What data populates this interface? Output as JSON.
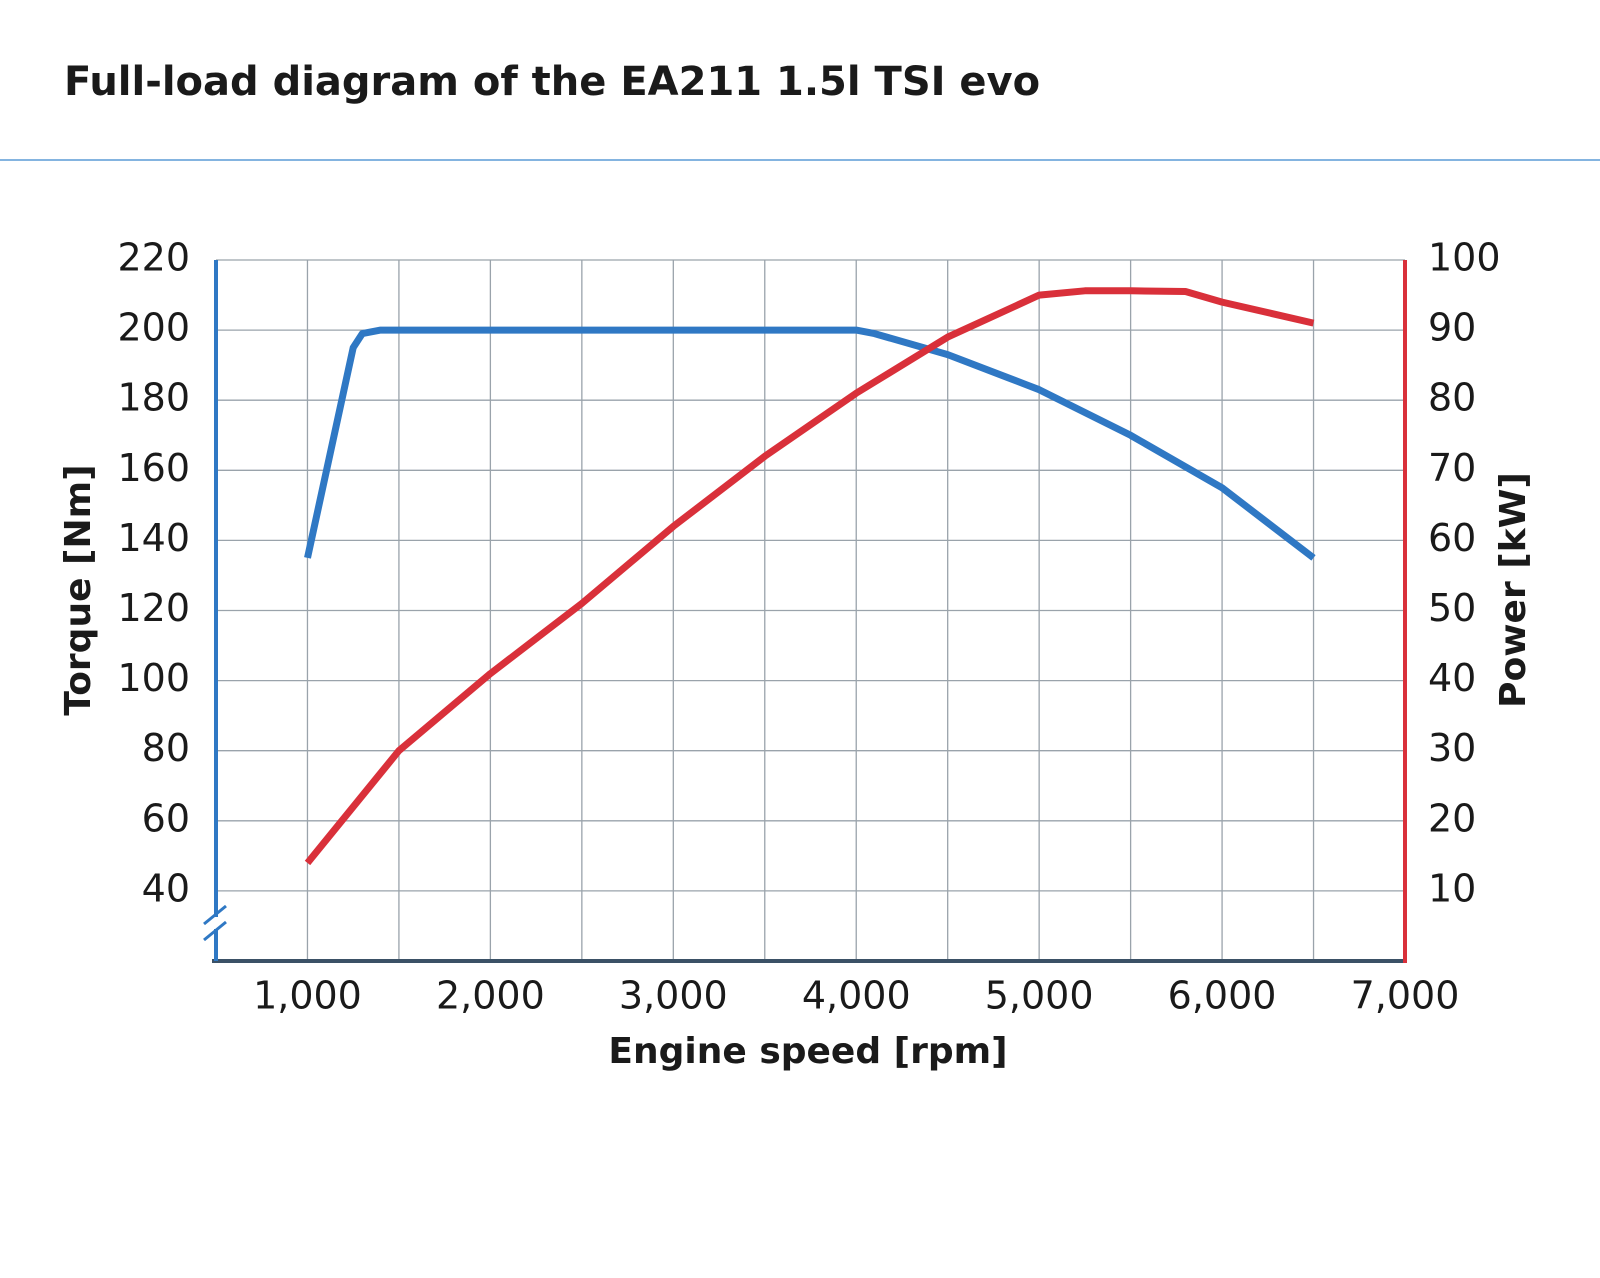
{
  "chart_data": {
    "type": "line",
    "title": "Full-load diagram of the EA211 1.5l TSI evo",
    "x_label": "Engine speed [rpm]",
    "y_label": "Torque [Nm]",
    "y2_label": "Power [kW]",
    "xlim": [
      500,
      7000
    ],
    "xticks": [
      {
        "value": 1000,
        "label": "1,000"
      },
      {
        "value": 2000,
        "label": "2,000"
      },
      {
        "value": 3000,
        "label": "3,000"
      },
      {
        "value": 4000,
        "label": "4,000"
      },
      {
        "value": 5000,
        "label": "5,000"
      },
      {
        "value": 6000,
        "label": "6,000"
      },
      {
        "value": 7000,
        "label": "7,000"
      }
    ],
    "x_minor_ticks": [
      1500,
      2500,
      3500,
      4500,
      5500,
      6500
    ],
    "ylim": [
      20,
      220
    ],
    "yticks": [
      40,
      60,
      80,
      100,
      120,
      140,
      160,
      180,
      200,
      220
    ],
    "y2lim": [
      0,
      100
    ],
    "y2ticks": [
      10,
      20,
      30,
      40,
      50,
      60,
      70,
      80,
      90,
      100
    ],
    "y_axis_color": "#2f78c4",
    "y2_axis_color": "#d9303a",
    "grid": true,
    "series": [
      {
        "color": "#2f78c4",
        "x": [
          1000,
          1250,
          1300,
          1400,
          4000,
          4100,
          4500,
          5000,
          5500,
          6000,
          6500
        ],
        "values": [
          135,
          195,
          199,
          200,
          200,
          199,
          193,
          183,
          170,
          155,
          135
        ]
      },
      {
        "color": "#d9303a",
        "axis": "y2",
        "x": [
          1000,
          1500,
          2000,
          2500,
          3000,
          3500,
          4000,
          4500,
          5000,
          5250,
          5500,
          5800,
          6000,
          6500
        ],
        "values": [
          14,
          30,
          41,
          51,
          62,
          72,
          81,
          89,
          95,
          95.6,
          95.6,
          95.5,
          94,
          91
        ]
      }
    ]
  }
}
